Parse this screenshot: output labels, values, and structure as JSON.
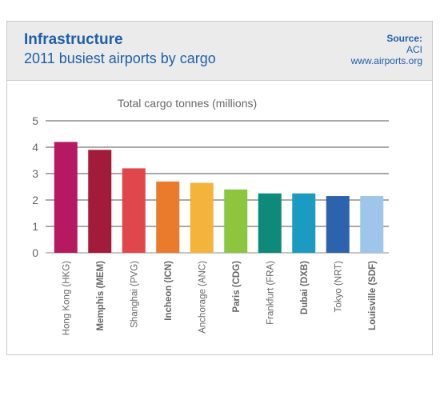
{
  "header": {
    "title": "Infrastructure",
    "subtitle": "2011 busiest airports by cargo",
    "source_label": "Source:",
    "source_org": "ACI",
    "source_url": "www.airports.org"
  },
  "chart_data": {
    "type": "bar",
    "title": "Total cargo tonnes (millions)",
    "categories": [
      "Hong Kong (HKG)",
      "Memphis (MEM)",
      "Shanghai (PVG)",
      "Incheon (ICN)",
      "Anchorage (ANC)",
      "Paris (CDG)",
      "Frankfurt (FRA)",
      "Dubai (DXB)",
      "Tokyo (NRT)",
      "Louisville (SDF)"
    ],
    "values": [
      4.2,
      3.9,
      3.2,
      2.7,
      2.65,
      2.4,
      2.25,
      2.25,
      2.15,
      2.15
    ],
    "bold_categories": [
      false,
      true,
      false,
      true,
      false,
      true,
      false,
      true,
      false,
      true
    ],
    "colors": [
      "#b5195f",
      "#a21b3a",
      "#e0474c",
      "#ea7a2c",
      "#f4b43c",
      "#8cc63f",
      "#0e8a7b",
      "#1b9bc2",
      "#2d62ad",
      "#9ec6ea"
    ],
    "yticks": [
      0,
      1,
      2,
      3,
      4,
      5
    ],
    "ylim": [
      0,
      5
    ],
    "grid": true
  }
}
